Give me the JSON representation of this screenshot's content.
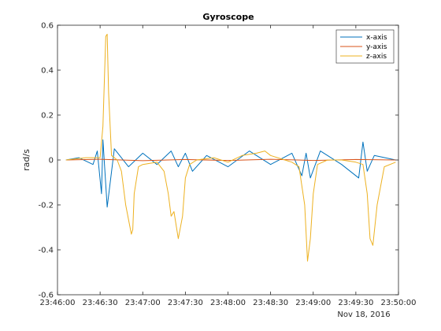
{
  "chart_data": {
    "type": "line",
    "title": "Gyroscope",
    "xlabel": "",
    "ylabel": "rad/s",
    "date_label": "Nov 18, 2016",
    "x_ticks": [
      "23:46:00",
      "23:46:30",
      "23:47:00",
      "23:47:30",
      "23:48:00",
      "23:48:30",
      "23:49:00",
      "23:49:30",
      "23:50:00"
    ],
    "y_ticks": [
      "-0.6",
      "-0.4",
      "-0.2",
      "0",
      "0.2",
      "0.4",
      "0.6"
    ],
    "xlim": [
      "23:46:00",
      "23:50:00"
    ],
    "ylim": [
      -0.6,
      0.6
    ],
    "grid": false,
    "legend_position": "top-right",
    "series": [
      {
        "name": "x-axis",
        "color": "#0072BD",
        "x": [
          "23:46:06",
          "23:46:15",
          "23:46:25",
          "23:46:28",
          "23:46:31",
          "23:46:32",
          "23:46:35",
          "23:46:40",
          "23:46:50",
          "23:47:00",
          "23:47:10",
          "23:47:20",
          "23:47:25",
          "23:47:30",
          "23:47:35",
          "23:47:45",
          "23:48:00",
          "23:48:15",
          "23:48:30",
          "23:48:45",
          "23:48:52",
          "23:48:55",
          "23:48:58",
          "23:49:05",
          "23:49:20",
          "23:49:32",
          "23:49:35",
          "23:49:38",
          "23:49:43",
          "23:49:58"
        ],
        "values": [
          0,
          0.01,
          -0.02,
          0.04,
          -0.15,
          0.09,
          -0.21,
          0.05,
          -0.03,
          0.03,
          -0.02,
          0.04,
          -0.03,
          0.03,
          -0.05,
          0.02,
          -0.03,
          0.04,
          -0.02,
          0.03,
          -0.07,
          0.03,
          -0.08,
          0.04,
          -0.02,
          -0.08,
          0.08,
          -0.05,
          0.02,
          0
        ]
      },
      {
        "name": "y-axis",
        "color": "#D95319",
        "x": [
          "23:46:06",
          "23:46:30",
          "23:47:00",
          "23:47:30",
          "23:48:00",
          "23:48:30",
          "23:49:00",
          "23:49:30",
          "23:49:58"
        ],
        "values": [
          0,
          0.003,
          -0.003,
          0.002,
          -0.002,
          0.003,
          -0.002,
          0.002,
          0
        ]
      },
      {
        "name": "z-axis",
        "color": "#EDB120",
        "x": [
          "23:46:06",
          "23:46:20",
          "23:46:30",
          "23:46:32",
          "23:46:34",
          "23:46:35",
          "23:46:36",
          "23:46:38",
          "23:46:42",
          "23:46:45",
          "23:46:48",
          "23:46:52",
          "23:46:53",
          "23:46:54",
          "23:46:57",
          "23:47:00",
          "23:47:10",
          "23:47:15",
          "23:47:18",
          "23:47:20",
          "23:47:22",
          "23:47:25",
          "23:47:28",
          "23:47:30",
          "23:47:33",
          "23:47:38",
          "23:47:50",
          "23:48:00",
          "23:48:10",
          "23:48:20",
          "23:48:26",
          "23:48:30",
          "23:48:40",
          "23:48:45",
          "23:48:50",
          "23:48:54",
          "23:48:56",
          "23:48:58",
          "23:49:00",
          "23:49:03",
          "23:49:10",
          "23:49:20",
          "23:49:30",
          "23:49:35",
          "23:49:38",
          "23:49:40",
          "23:49:42",
          "23:49:45",
          "23:49:50",
          "23:49:58"
        ],
        "values": [
          0,
          0.01,
          0.01,
          0.15,
          0.55,
          0.56,
          0.3,
          0.02,
          0,
          -0.05,
          -0.2,
          -0.33,
          -0.31,
          -0.15,
          -0.03,
          -0.02,
          -0.01,
          -0.05,
          -0.15,
          -0.25,
          -0.23,
          -0.35,
          -0.25,
          -0.08,
          -0.02,
          0,
          0.01,
          -0.01,
          0.02,
          0.03,
          0.04,
          0.02,
          0,
          -0.01,
          -0.03,
          -0.2,
          -0.45,
          -0.35,
          -0.15,
          -0.02,
          0,
          0,
          -0.01,
          -0.02,
          -0.15,
          -0.35,
          -0.38,
          -0.2,
          -0.03,
          -0.01
        ]
      }
    ]
  }
}
